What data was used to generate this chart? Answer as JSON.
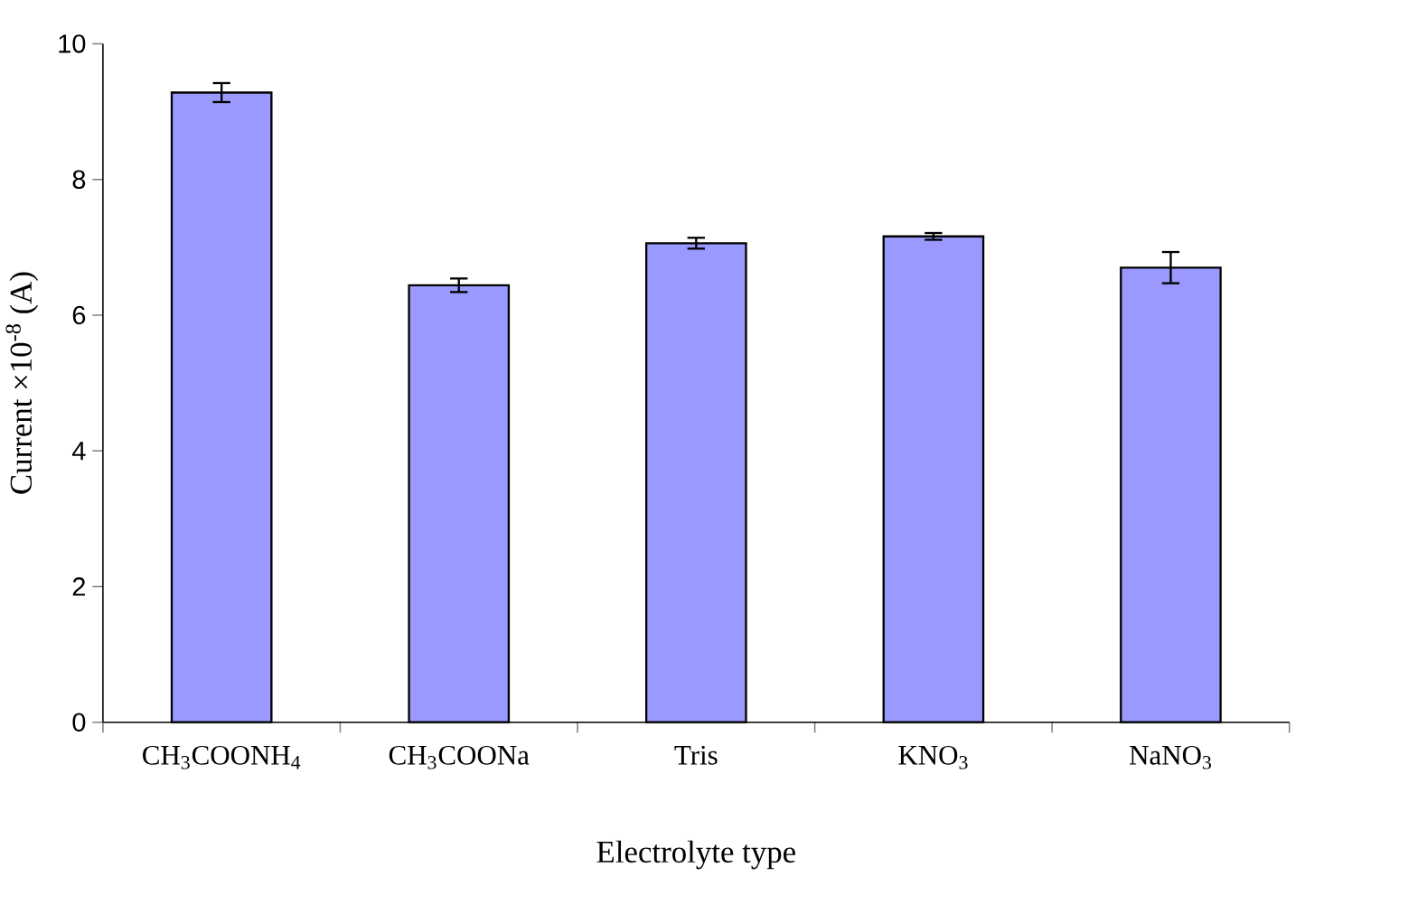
{
  "chart_data": {
    "type": "bar",
    "xlabel": "Electrolyte type",
    "ylabel": "Current ×10$^{-8}$ (A)",
    "categories": [
      "CH$_{3}$COONH$_{4}$",
      "CH$_{3}$COONa",
      "Tris",
      "KNO$_{3}$",
      "NaNO$_{3}$"
    ],
    "values": [
      9.28,
      6.44,
      7.06,
      7.16,
      6.7
    ],
    "errors": [
      0.14,
      0.1,
      0.08,
      0.05,
      0.23
    ],
    "color": "#9999ff",
    "ylim": [
      0,
      10
    ],
    "yticks": [
      0,
      2,
      4,
      6,
      8,
      10
    ]
  }
}
